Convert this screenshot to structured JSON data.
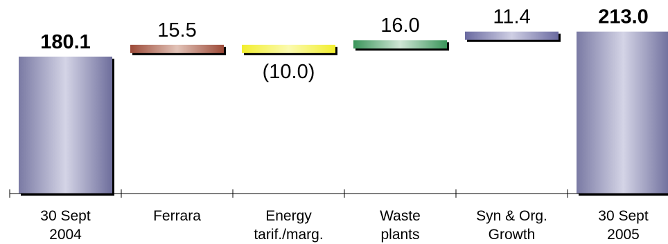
{
  "chart_data": {
    "type": "waterfall",
    "title": "",
    "xlabel": "",
    "ylabel": "",
    "ylim": [
      0,
      225
    ],
    "grid": false,
    "legend": "none",
    "bars": [
      {
        "label": [
          "30 Sept",
          "2004"
        ],
        "value": 180.1,
        "value_label": "180.1",
        "kind": "total",
        "color": "#7d7da8"
      },
      {
        "label": [
          "Ferrara"
        ],
        "value": 15.5,
        "value_label": "15.5",
        "kind": "delta",
        "color": "#a0503c"
      },
      {
        "label": [
          "Energy",
          "tarif./marg."
        ],
        "value": -10.0,
        "value_label": "(10.0)",
        "kind": "delta",
        "color": "#f2ee2e"
      },
      {
        "label": [
          "Waste",
          "plants"
        ],
        "value": 16.0,
        "value_label": "16.0",
        "kind": "delta",
        "color": "#3c9a5e"
      },
      {
        "label": [
          "Syn & Org.",
          "Growth"
        ],
        "value": 11.4,
        "value_label": "11.4",
        "kind": "delta",
        "color": "#6a6aa0"
      },
      {
        "label": [
          "30 Sept",
          "2005"
        ],
        "value": 213.0,
        "value_label": "213.0",
        "kind": "total",
        "color": "#7d7da8"
      }
    ]
  }
}
